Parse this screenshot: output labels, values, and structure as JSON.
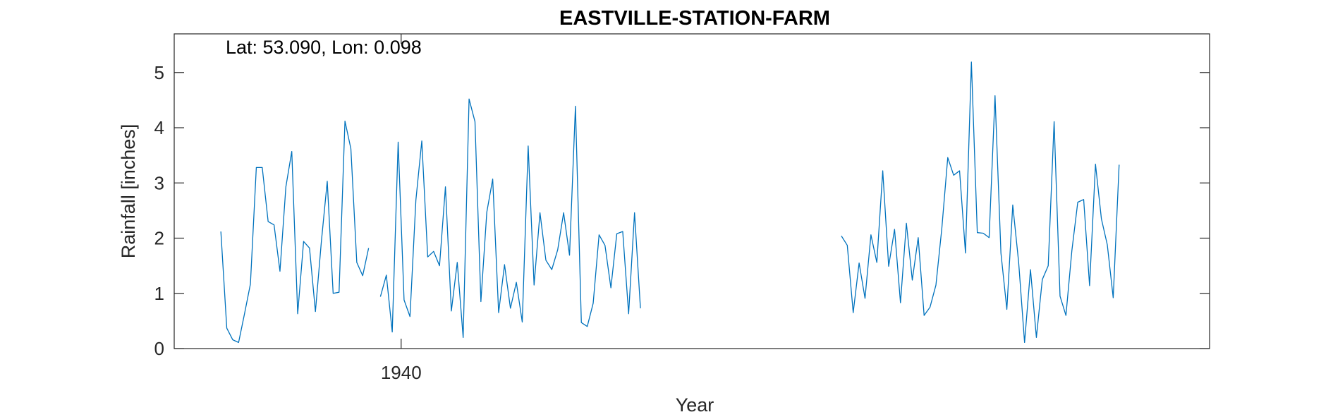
{
  "chart_data": {
    "type": "line",
    "title": "EASTVILLE-STATION-FARM",
    "annotation": "Lat: 53.090, Lon: 0.098",
    "xlabel": "Year",
    "ylabel": "Rainfall [inches]",
    "xlim": [
      1936.8,
      1951.4
    ],
    "ylim": [
      0,
      5.7
    ],
    "xticks": [
      1940
    ],
    "xtick_labels": [
      "1940"
    ],
    "yticks": [
      0,
      1,
      2,
      3,
      4,
      5
    ],
    "ytick_labels": [
      "0",
      "1",
      "2",
      "3",
      "4",
      "5"
    ],
    "grid": false,
    "line_color": "#0072BD",
    "series": [
      {
        "segments": [
          {
            "x_start": 1937.458,
            "x_step": 0.08333,
            "values": [
              2.12,
              0.37,
              0.16,
              0.11,
              0.63,
              1.17,
              3.28,
              3.28,
              2.3,
              2.24,
              1.4,
              2.93,
              3.57,
              0.63,
              1.94,
              1.82,
              0.67,
              1.93,
              3.03,
              1.0,
              1.02,
              4.12,
              3.62,
              1.56,
              1.32,
              1.82
            ]
          },
          {
            "x_start": 1939.708,
            "x_step": 0.08333,
            "values": [
              0.94,
              1.33,
              0.3,
              3.74,
              0.88,
              0.58,
              2.69,
              3.76,
              1.66,
              1.76,
              1.5,
              2.93,
              0.68,
              1.56,
              0.2,
              4.52,
              4.11,
              0.85,
              2.47,
              3.07,
              0.65,
              1.52,
              0.73,
              1.2,
              0.48,
              3.67,
              1.15,
              2.46,
              1.6,
              1.43,
              1.79,
              2.46,
              1.69,
              4.39,
              0.47,
              0.4,
              0.82,
              2.06,
              1.87,
              1.1,
              2.08,
              2.12,
              0.63,
              2.46,
              0.73
            ]
          },
          {
            "x_start": 1946.208,
            "x_step": 0.08333,
            "values": [
              2.04,
              1.87,
              0.65,
              1.55,
              0.91,
              2.06,
              1.56,
              3.22,
              1.49,
              2.16,
              0.83,
              2.27,
              1.24,
              2.01,
              0.6,
              0.75,
              1.15,
              2.18,
              3.46,
              3.14,
              3.22,
              1.73,
              5.19,
              2.1,
              2.09,
              2.01,
              4.58,
              1.73,
              0.71,
              2.6,
              1.56,
              0.11,
              1.43,
              0.2,
              1.25,
              1.5,
              4.11,
              0.95,
              0.6,
              1.77,
              2.65,
              2.7,
              1.14,
              3.34,
              2.35,
              1.88,
              0.92,
              3.33
            ]
          }
        ]
      }
    ]
  }
}
